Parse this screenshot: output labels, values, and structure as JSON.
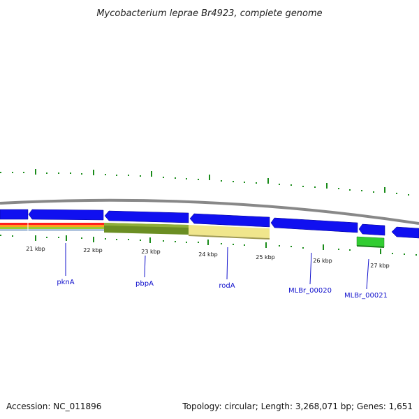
{
  "title": "Mycobacterium leprae Br4923, complete genome",
  "footer": {
    "accession": "Accession: NC_011896",
    "summary": "Topology: circular; Length: 3,268,071 bp; Genes: 1,651"
  },
  "colors": {
    "backbone": "#808080",
    "gene_fill": "#0000ff",
    "gene_dark": "#00008b",
    "label": "#0000cc",
    "tick": "#006400",
    "track_red": "#ff0000",
    "track_orange": "#ffa500",
    "track_yellow": "#ffff00",
    "track_green": "#32cd32",
    "olive": "#6b8e23",
    "khaki": "#f0e68c",
    "green_gene": "#32cd32"
  },
  "scale_labels": [
    "21 kbp",
    "22 kbp",
    "23 kbp",
    "24 kbp",
    "25 kbp",
    "26 kbp",
    "27 kbp"
  ],
  "gene_labels": [
    "pknA",
    "pbpA",
    "rodA",
    "MLBr_00020",
    "MLBr_00021"
  ]
}
